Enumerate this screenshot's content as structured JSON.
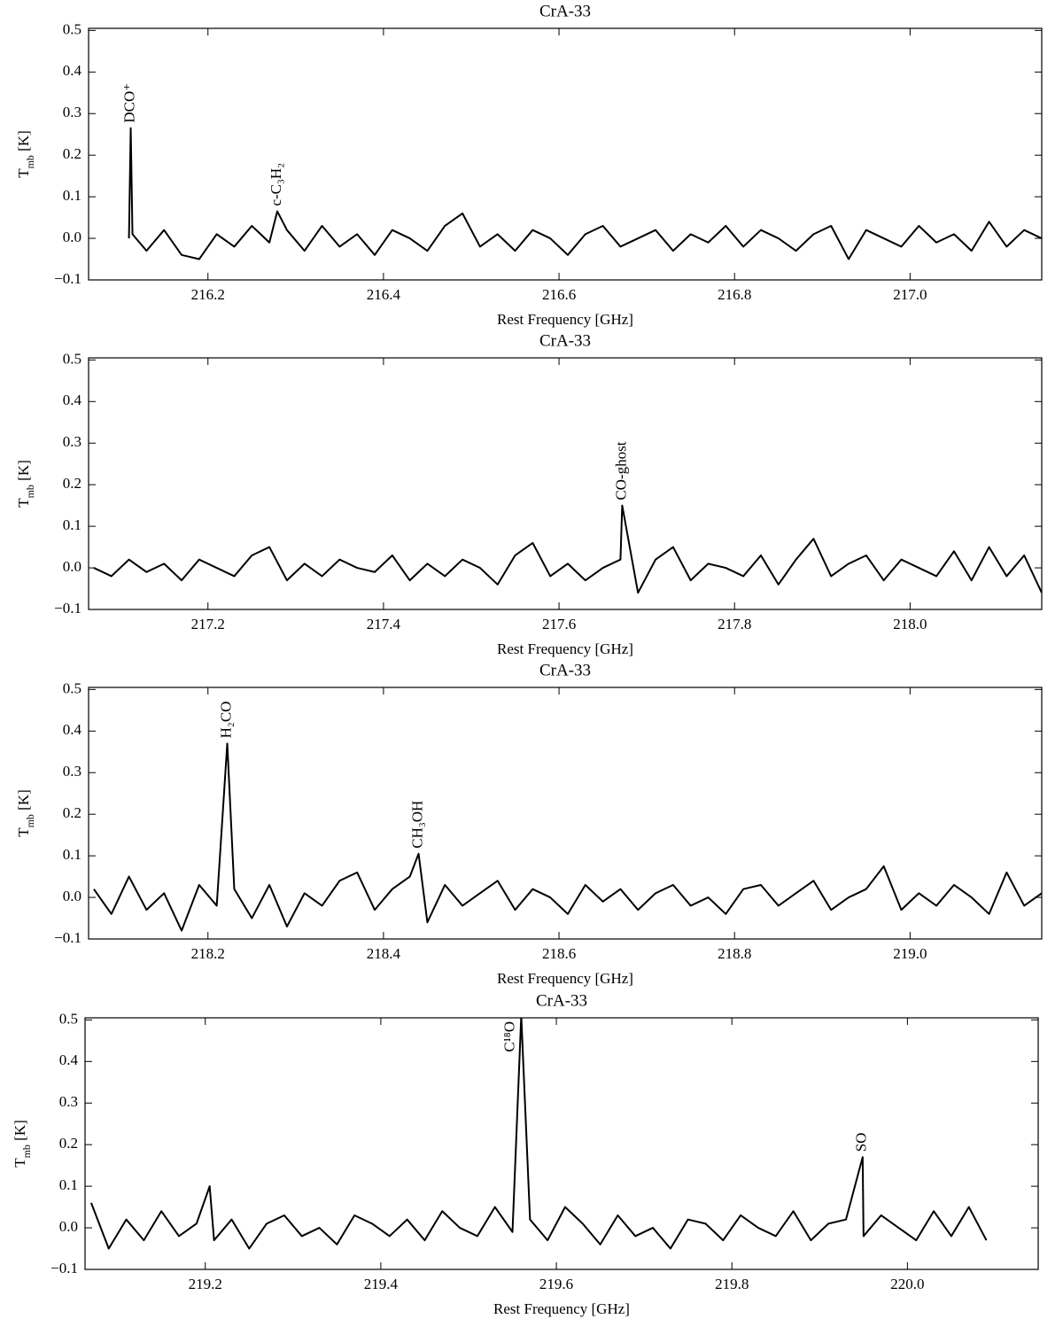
{
  "chart_data": [
    {
      "type": "line",
      "title": "CrA-33",
      "xlabel": "Rest Frequency [GHz]",
      "ylabel": [
        "T",
        "mb",
        " [K]"
      ],
      "color": "#000000",
      "xlim": [
        216.064,
        217.15
      ],
      "ylim": [
        -0.1,
        0.505
      ],
      "xticks": [
        216.2,
        216.4,
        216.6,
        216.8,
        {
          "value": 217.0,
          "label": "217.0"
        }
      ],
      "yticks": [
        {
          "value": -0.1,
          "label": "−0.1"
        },
        {
          "value": 0,
          "label": "0.0"
        },
        0.1,
        0.2,
        0.3,
        0.4,
        0.5
      ],
      "x": [
        216.11,
        216.112,
        216.114,
        216.13,
        216.15,
        216.17,
        216.19,
        216.21,
        216.23,
        216.25,
        216.27,
        216.279,
        216.29,
        216.31,
        216.33,
        216.35,
        216.37,
        216.39,
        216.41,
        216.43,
        216.45,
        216.47,
        216.49,
        216.51,
        216.53,
        216.55,
        216.57,
        216.59,
        216.61,
        216.63,
        216.65,
        216.67,
        216.69,
        216.71,
        216.73,
        216.75,
        216.77,
        216.79,
        216.81,
        216.83,
        216.85,
        216.87,
        216.89,
        216.91,
        216.93,
        216.95,
        216.97,
        216.99,
        217.01,
        217.03,
        217.05,
        217.07,
        217.09,
        217.11,
        217.13,
        217.15
      ],
      "values": [
        0,
        0.265,
        0.01,
        -0.03,
        0.02,
        -0.04,
        -0.05,
        0.01,
        -0.02,
        0.03,
        -0.01,
        0.065,
        0.02,
        -0.03,
        0.03,
        -0.02,
        0.01,
        -0.04,
        0.02,
        0.0,
        -0.03,
        0.03,
        0.06,
        -0.02,
        0.01,
        -0.03,
        0.02,
        0.0,
        -0.04,
        0.01,
        0.03,
        -0.02,
        0.0,
        0.02,
        -0.03,
        0.01,
        -0.01,
        0.03,
        -0.02,
        0.02,
        0.0,
        -0.03,
        0.01,
        0.03,
        -0.05,
        0.02,
        0.0,
        -0.02,
        0.03,
        -0.01,
        0.01,
        -0.03,
        0.04,
        -0.02,
        0.02,
        0.0
      ],
      "annotations": [
        {
          "text": "DCO⁺",
          "x": 216.112
        },
        {
          "text": "c-C₃H₂",
          "x": 216.279
        }
      ]
    },
    {
      "type": "line",
      "title": "CrA-33",
      "xlabel": "Rest Frequency [GHz]",
      "ylabel": [
        "T",
        "mb",
        " [K]"
      ],
      "color": "#000000",
      "xlim": [
        217.064,
        218.15
      ],
      "ylim": [
        -0.1,
        0.505
      ],
      "xticks": [
        217.2,
        217.4,
        217.6,
        217.8,
        {
          "value": 218.0,
          "label": "218.0"
        }
      ],
      "yticks": [
        {
          "value": -0.1,
          "label": "−0.1"
        },
        {
          "value": 0,
          "label": "0.0"
        },
        0.1,
        0.2,
        0.3,
        0.4,
        0.5
      ],
      "x": [
        217.07,
        217.09,
        217.11,
        217.13,
        217.15,
        217.17,
        217.19,
        217.21,
        217.23,
        217.25,
        217.27,
        217.29,
        217.31,
        217.33,
        217.35,
        217.37,
        217.39,
        217.41,
        217.43,
        217.45,
        217.47,
        217.49,
        217.51,
        217.53,
        217.55,
        217.57,
        217.59,
        217.61,
        217.63,
        217.65,
        217.67,
        217.672,
        217.69,
        217.71,
        217.73,
        217.75,
        217.77,
        217.79,
        217.81,
        217.83,
        217.85,
        217.87,
        217.89,
        217.91,
        217.93,
        217.95,
        217.97,
        217.99,
        218.01,
        218.03,
        218.05,
        218.07,
        218.09,
        218.11,
        218.13,
        218.15
      ],
      "values": [
        0.0,
        -0.02,
        0.02,
        -0.01,
        0.01,
        -0.03,
        0.02,
        0.0,
        -0.02,
        0.03,
        0.05,
        -0.03,
        0.01,
        -0.02,
        0.02,
        0.0,
        -0.01,
        0.03,
        -0.03,
        0.01,
        -0.02,
        0.02,
        0.0,
        -0.04,
        0.03,
        0.06,
        -0.02,
        0.01,
        -0.03,
        0.0,
        0.02,
        0.15,
        -0.06,
        0.02,
        0.05,
        -0.03,
        0.01,
        0.0,
        -0.02,
        0.03,
        -0.04,
        0.02,
        0.07,
        -0.02,
        0.01,
        0.03,
        -0.03,
        0.02,
        0.0,
        -0.02,
        0.04,
        -0.03,
        0.05,
        -0.02,
        0.03,
        -0.06
      ],
      "annotations": [
        {
          "text": "CO-ghost",
          "x": 217.672
        }
      ]
    },
    {
      "type": "line",
      "title": "CrA-33",
      "xlabel": "Rest Frequency [GHz]",
      "ylabel": [
        "T",
        "mb",
        " [K]"
      ],
      "color": "#000000",
      "xlim": [
        218.064,
        219.15
      ],
      "ylim": [
        -0.1,
        0.505
      ],
      "xticks": [
        218.2,
        218.4,
        218.6,
        218.8,
        {
          "value": 219.0,
          "label": "219.0"
        }
      ],
      "yticks": [
        {
          "value": -0.1,
          "label": "−0.1"
        },
        {
          "value": 0,
          "label": "0.0"
        },
        0.1,
        0.2,
        0.3,
        0.4,
        0.5
      ],
      "x": [
        218.07,
        218.09,
        218.11,
        218.13,
        218.15,
        218.17,
        218.19,
        218.21,
        218.222,
        218.23,
        218.25,
        218.27,
        218.29,
        218.31,
        218.33,
        218.35,
        218.37,
        218.39,
        218.41,
        218.43,
        218.44,
        218.45,
        218.47,
        218.49,
        218.51,
        218.53,
        218.55,
        218.57,
        218.59,
        218.61,
        218.63,
        218.65,
        218.67,
        218.69,
        218.71,
        218.73,
        218.75,
        218.77,
        218.79,
        218.81,
        218.83,
        218.85,
        218.87,
        218.89,
        218.91,
        218.93,
        218.95,
        218.97,
        218.99,
        219.01,
        219.03,
        219.05,
        219.07,
        219.09,
        219.11,
        219.13,
        219.15
      ],
      "values": [
        0.02,
        -0.04,
        0.05,
        -0.03,
        0.01,
        -0.08,
        0.03,
        -0.02,
        0.37,
        0.02,
        -0.05,
        0.03,
        -0.07,
        0.01,
        -0.02,
        0.04,
        0.06,
        -0.03,
        0.02,
        0.05,
        0.105,
        -0.06,
        0.03,
        -0.02,
        0.01,
        0.04,
        -0.03,
        0.02,
        0.0,
        -0.04,
        0.03,
        -0.01,
        0.02,
        -0.03,
        0.01,
        0.03,
        -0.02,
        0.0,
        -0.04,
        0.02,
        0.03,
        -0.02,
        0.01,
        0.04,
        -0.03,
        0.0,
        0.02,
        0.075,
        -0.03,
        0.01,
        -0.02,
        0.03,
        0.0,
        -0.04,
        0.06,
        -0.02,
        0.01
      ],
      "annotations": [
        {
          "text": "H₂CO",
          "x": 218.222
        },
        {
          "text": "CH₃OH",
          "x": 218.44
        }
      ]
    },
    {
      "type": "line",
      "title": "CrA-33",
      "xlabel": "Rest Frequency [GHz]",
      "ylabel": [
        "T",
        "mb",
        " [K]"
      ],
      "color": "#000000",
      "xlim": [
        219.063,
        220.149
      ],
      "ylim": [
        -0.1,
        0.505
      ],
      "xticks": [
        219.2,
        219.4,
        219.6,
        219.8,
        {
          "value": 220.0,
          "label": "220.0"
        }
      ],
      "yticks": [
        {
          "value": -0.1,
          "label": "−0.1"
        },
        {
          "value": 0,
          "label": "0.0"
        },
        0.1,
        0.2,
        0.3,
        0.4,
        0.5
      ],
      "x": [
        219.07,
        219.09,
        219.11,
        219.13,
        219.15,
        219.17,
        219.19,
        219.205,
        219.21,
        219.23,
        219.25,
        219.27,
        219.29,
        219.31,
        219.33,
        219.35,
        219.37,
        219.39,
        219.41,
        219.43,
        219.45,
        219.47,
        219.49,
        219.51,
        219.53,
        219.55,
        219.56,
        219.57,
        219.59,
        219.61,
        219.63,
        219.65,
        219.67,
        219.69,
        219.71,
        219.73,
        219.75,
        219.77,
        219.79,
        219.81,
        219.83,
        219.85,
        219.87,
        219.89,
        219.91,
        219.93,
        219.949,
        219.95,
        219.97,
        219.99,
        220.01,
        220.03,
        220.05,
        220.07,
        220.09
      ],
      "values": [
        0.06,
        -0.05,
        0.02,
        -0.03,
        0.04,
        -0.02,
        0.01,
        0.1,
        -0.03,
        0.02,
        -0.05,
        0.01,
        0.03,
        -0.02,
        0.0,
        -0.04,
        0.03,
        0.01,
        -0.02,
        0.02,
        -0.03,
        0.04,
        0.0,
        -0.02,
        0.05,
        -0.01,
        0.51,
        0.02,
        -0.03,
        0.05,
        0.01,
        -0.04,
        0.03,
        -0.02,
        0.0,
        -0.05,
        0.02,
        0.01,
        -0.03,
        0.03,
        0.0,
        -0.02,
        0.04,
        -0.03,
        0.01,
        0.02,
        0.17,
        -0.02,
        0.03,
        0.0,
        -0.03,
        0.04,
        -0.02,
        0.05,
        -0.03
      ],
      "annotations": [
        {
          "text": "C¹⁸O",
          "x": 219.56
        },
        {
          "text": "SO",
          "x": 219.949
        }
      ]
    }
  ]
}
